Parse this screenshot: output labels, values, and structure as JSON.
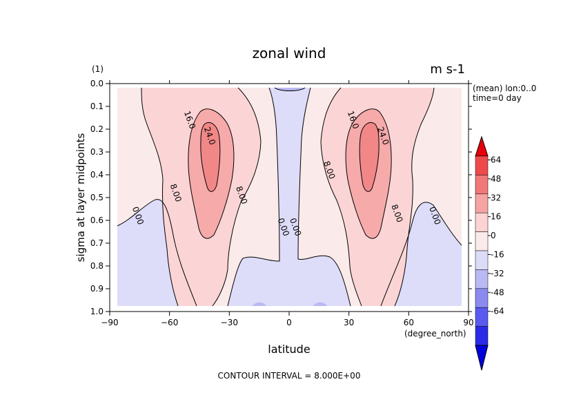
{
  "chart_data": {
    "type": "contour",
    "title": "zonal wind",
    "units": "m s-1",
    "panel_label": "(1)",
    "xlabel": "latitude",
    "xunits": "(degree_north)",
    "ylabel": "sigma at layer midpoints",
    "xlim": [
      -90,
      90
    ],
    "ylim": [
      1.0,
      0.0
    ],
    "x_ticks": [
      "−90",
      "−60",
      "−30",
      "0",
      "30",
      "60",
      "90"
    ],
    "y_ticks": [
      "0.0",
      "0.1",
      "0.2",
      "0.3",
      "0.4",
      "0.5",
      "0.6",
      "0.7",
      "0.8",
      "0.9",
      "1.0"
    ],
    "metadata": [
      "(mean) lon:0..0",
      "time=0 day"
    ],
    "contour_interval_text": "CONTOUR INTERVAL = 8.000E+00",
    "contour_labels": [
      {
        "text": "16.0",
        "lat": -50,
        "sigma": 0.16
      },
      {
        "text": "24.0",
        "lat": -40,
        "sigma": 0.23
      },
      {
        "text": "8.00",
        "lat": -57,
        "sigma": 0.48
      },
      {
        "text": "8.00",
        "lat": -24,
        "sigma": 0.49
      },
      {
        "text": "0.00",
        "lat": -76,
        "sigma": 0.58
      },
      {
        "text": "0.00",
        "lat": -3,
        "sigma": 0.63
      },
      {
        "text": "0.00",
        "lat": 3,
        "sigma": 0.63
      },
      {
        "text": "8.00",
        "lat": 20,
        "sigma": 0.38
      },
      {
        "text": "16.0",
        "lat": 32,
        "sigma": 0.16
      },
      {
        "text": "24.0",
        "lat": 47,
        "sigma": 0.23
      },
      {
        "text": "8.00",
        "lat": 54,
        "sigma": 0.57
      },
      {
        "text": "0.00",
        "lat": 73,
        "sigma": 0.58
      }
    ],
    "colorbar": {
      "labels": [
        "64",
        "48",
        "32",
        "16",
        "0",
        "-16",
        "-32",
        "-48",
        "-64"
      ],
      "colors": [
        "#e8000b",
        "#ee4a4c",
        "#f27777",
        "#f5a3a3",
        "#fbd3d3",
        "#fbeaea",
        "#dcdcf8",
        "#b9b9f3",
        "#8a8af0",
        "#5a5aef",
        "#2b2be7",
        "#0000dd"
      ]
    },
    "fill_colors": {
      "neg": "#dddcf9",
      "pos_0_8": "#fbeaea",
      "pos_8_16": "#fbd5d5",
      "pos_16_24": "#f6aaaa",
      "pos_24_32": "#f18787"
    }
  }
}
